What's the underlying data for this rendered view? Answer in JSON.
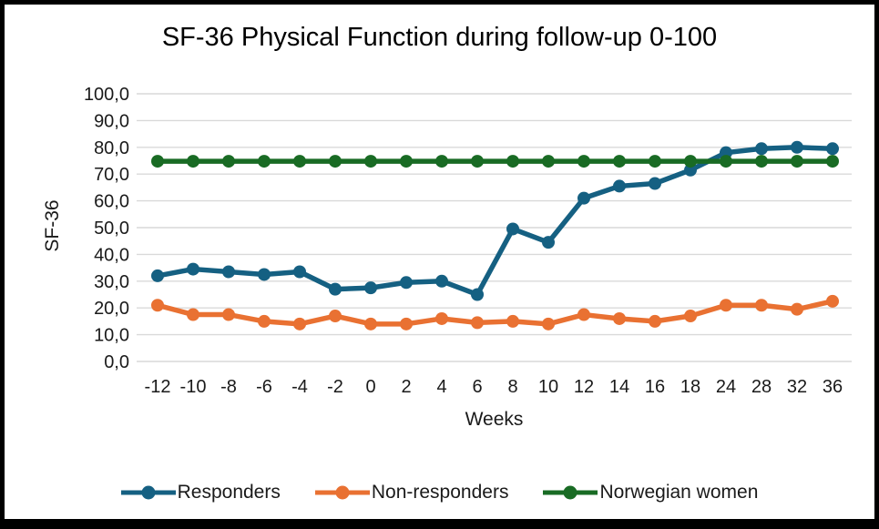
{
  "frame": {
    "border_color": "#000000",
    "background": "#ffffff"
  },
  "colors": {
    "gridline": "#D9D9D9",
    "title_text": "#000000",
    "tick_text": "#1a1a1a",
    "responders": "#156082",
    "non_responders": "#E97132",
    "norwegian_women": "#196B24"
  },
  "chart_data": {
    "type": "line",
    "title": "SF-36 Physical Function during follow-up 0-100",
    "xlabel": "Weeks",
    "ylabel": "SF-36",
    "ylim": [
      0,
      100
    ],
    "grid": true,
    "legend_position": "bottom",
    "y_ticks": [
      "100,0",
      "90,0",
      "80,0",
      "70,0",
      "60,0",
      "50,0",
      "40,0",
      "30,0",
      "20,0",
      "10,0",
      "0,0"
    ],
    "categories": [
      "-12",
      "-10",
      "-8",
      "-6",
      "-4",
      "-2",
      "0",
      "2",
      "4",
      "6",
      "8",
      "10",
      "12",
      "14",
      "16",
      "18",
      "24",
      "28",
      "32",
      "36"
    ],
    "series": [
      {
        "name": "Responders",
        "color": "#156082",
        "values": [
          32,
          34.5,
          33.5,
          32.5,
          33.5,
          27,
          27.5,
          29.5,
          30,
          25,
          49.5,
          44.5,
          61,
          65.5,
          66.5,
          71.5,
          78,
          79.5,
          80,
          79.5
        ]
      },
      {
        "name": "Non-responders",
        "color": "#E97132",
        "values": [
          21,
          17.5,
          17.5,
          15,
          14,
          17,
          14,
          14,
          16,
          14.5,
          15,
          14,
          17.5,
          16,
          15,
          17,
          21,
          21,
          19.5,
          22.5
        ]
      },
      {
        "name": "Norwegian women",
        "color": "#196B24",
        "values": [
          74.8,
          74.8,
          74.8,
          74.8,
          74.8,
          74.8,
          74.8,
          74.8,
          74.8,
          74.8,
          74.8,
          74.8,
          74.8,
          74.8,
          74.8,
          74.8,
          74.8,
          74.8,
          74.8,
          74.8
        ]
      }
    ]
  }
}
